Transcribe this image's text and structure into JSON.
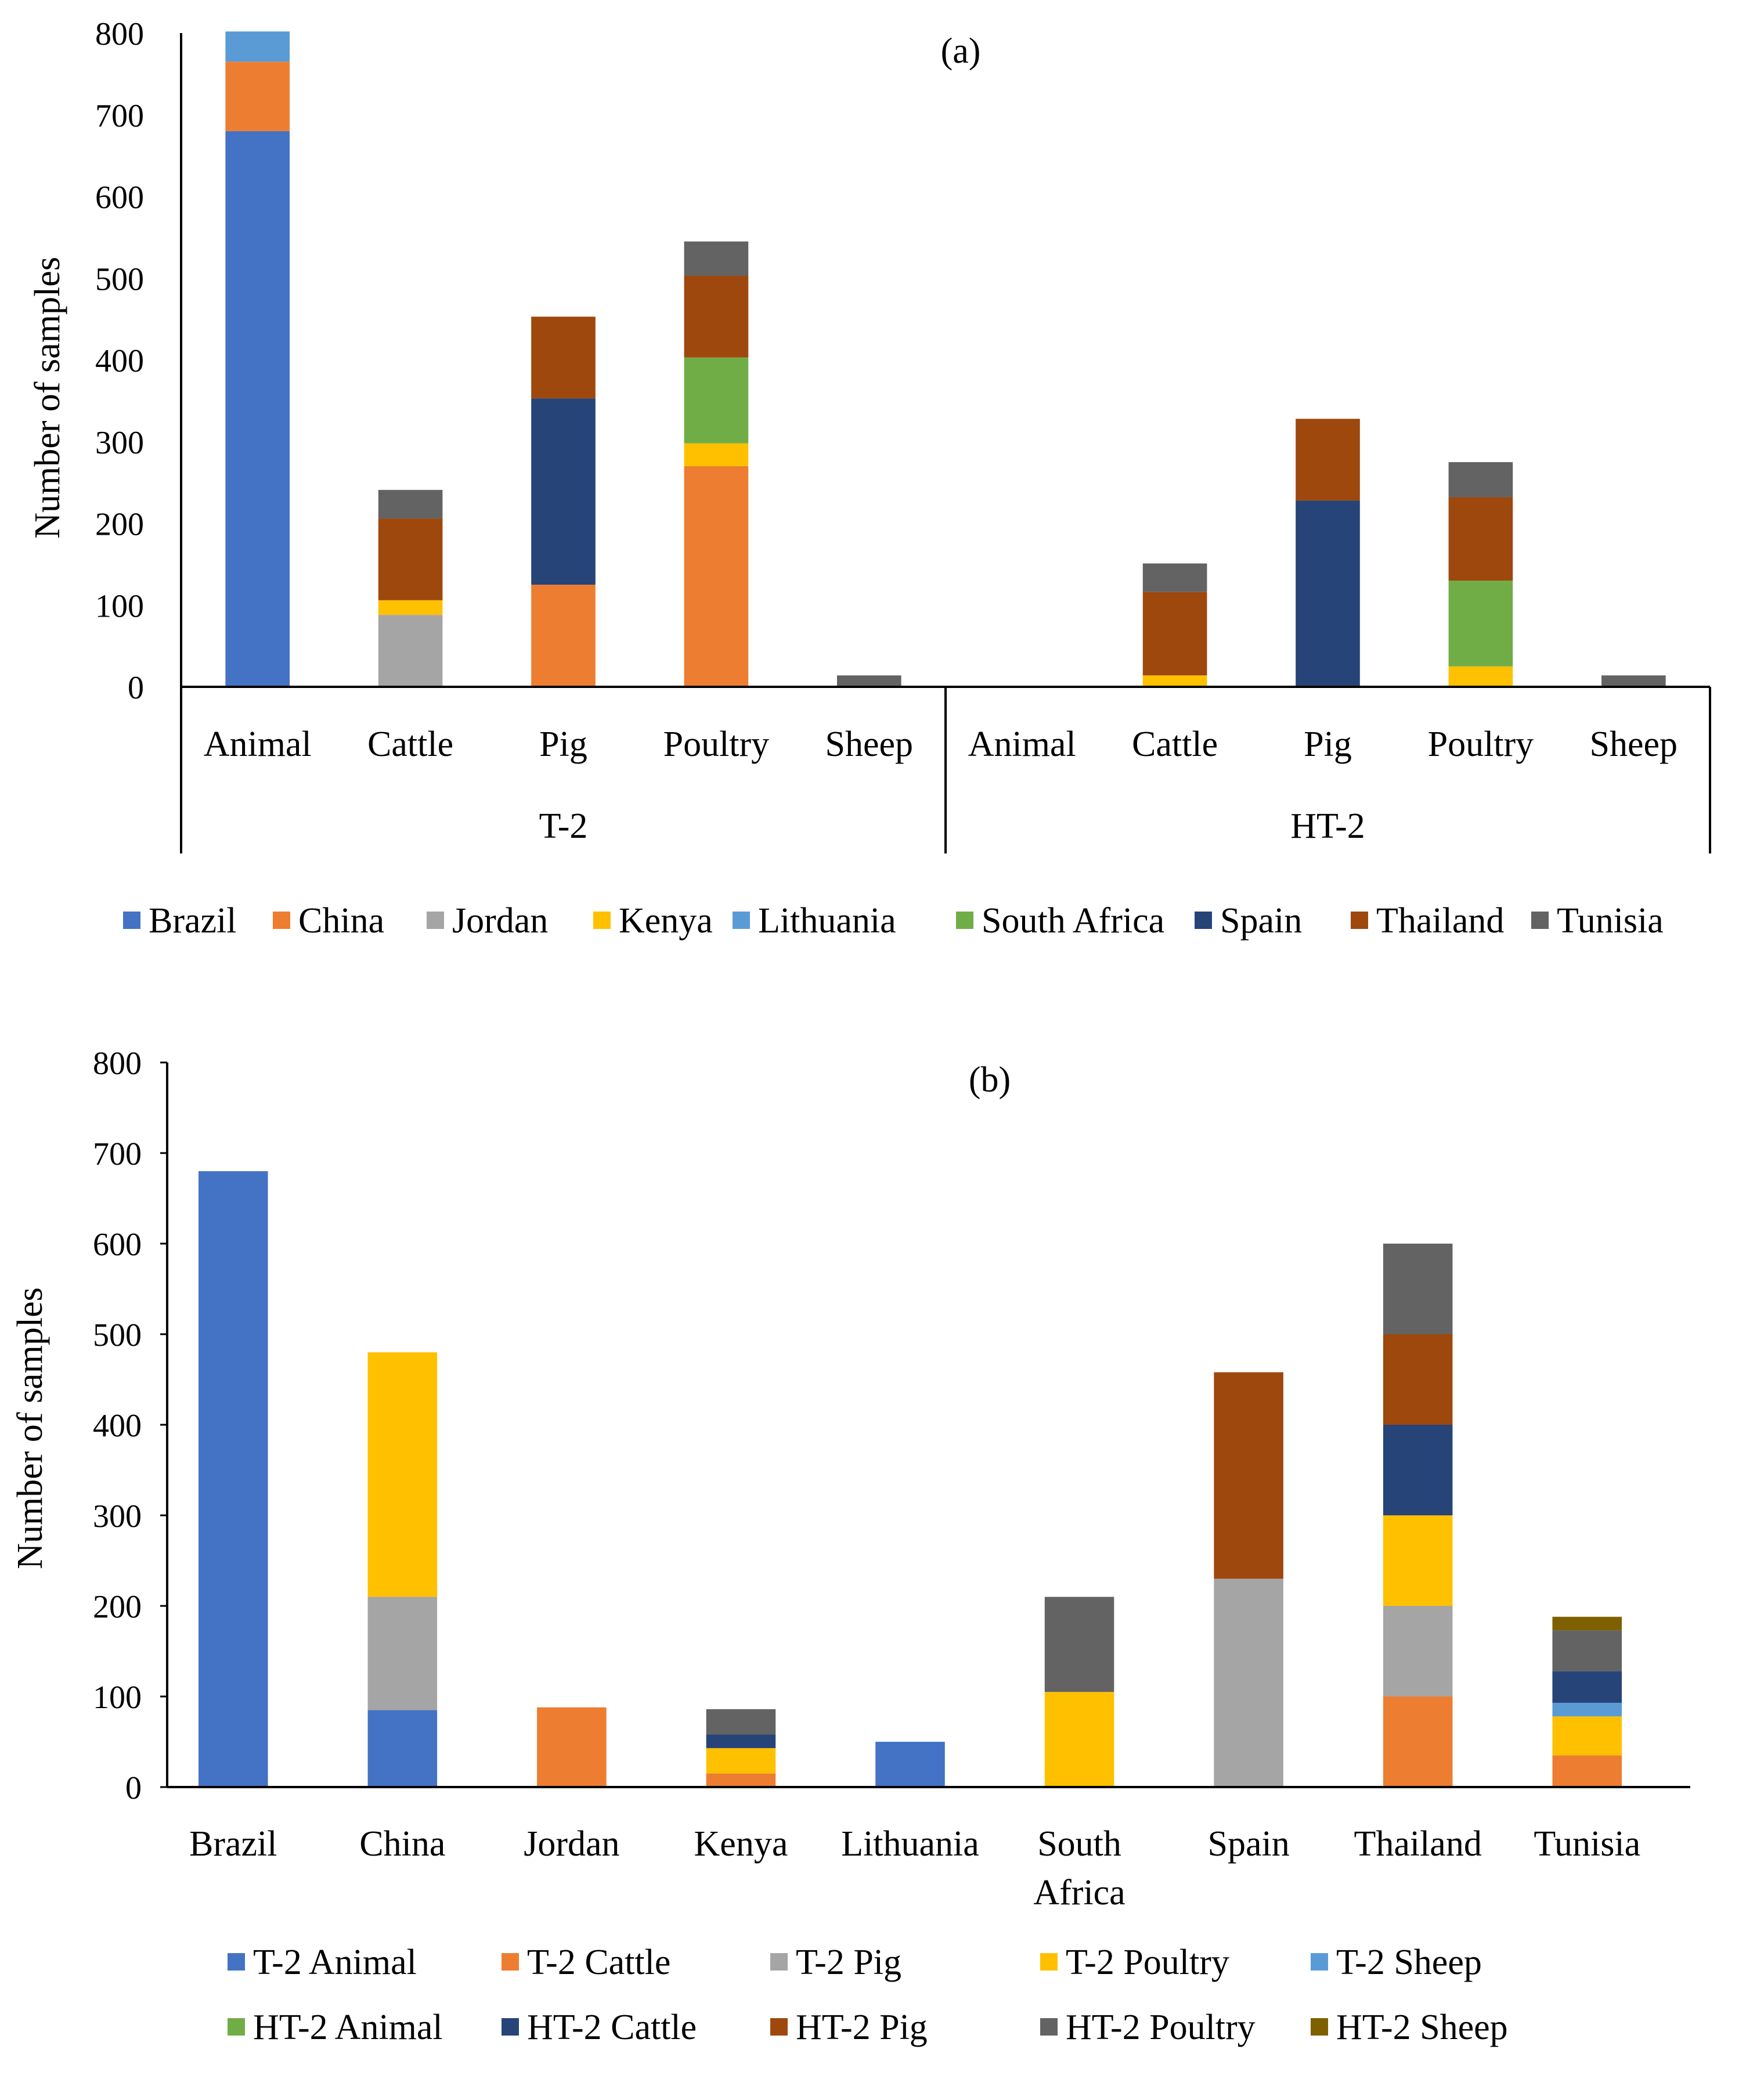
{
  "chart_data": [
    {
      "type": "bar",
      "stacked": true,
      "title": "(a)",
      "ylabel": "Number of samples",
      "xlabel": "",
      "ylim": [
        0,
        800
      ],
      "yticks": [
        0,
        100,
        200,
        300,
        400,
        500,
        600,
        700,
        800
      ],
      "ytick_labels": [
        "0",
        "100",
        "200",
        "300",
        "400",
        "500",
        "600",
        "700",
        "800"
      ],
      "groups": [
        {
          "label": "T-2",
          "categories": [
            "Animal",
            "Cattle",
            "Pig",
            "Poultry",
            "Sheep"
          ]
        },
        {
          "label": "HT-2",
          "categories": [
            "Animal",
            "Cattle",
            "Pig",
            "Poultry",
            "Sheep"
          ]
        }
      ],
      "series": [
        {
          "name": "Brazil",
          "color": "#4472C4",
          "values": [
            680,
            0,
            0,
            0,
            0,
            0,
            0,
            0,
            0,
            0
          ]
        },
        {
          "name": "China",
          "color": "#ED7D31",
          "values": [
            85,
            0,
            125,
            270,
            0,
            0,
            0,
            0,
            0,
            0
          ]
        },
        {
          "name": "Jordan",
          "color": "#A5A5A5",
          "values": [
            0,
            88,
            0,
            0,
            0,
            0,
            0,
            0,
            0,
            0
          ]
        },
        {
          "name": "Kenya",
          "color": "#FFC000",
          "values": [
            0,
            18,
            0,
            28,
            0,
            0,
            14,
            0,
            25,
            0
          ]
        },
        {
          "name": "Lithuania",
          "color": "#5B9BD5",
          "values": [
            37,
            0,
            0,
            0,
            0,
            0,
            0,
            0,
            0,
            0
          ]
        },
        {
          "name": "South Africa",
          "color": "#70AD47",
          "values": [
            0,
            0,
            0,
            105,
            0,
            0,
            0,
            0,
            105,
            0
          ]
        },
        {
          "name": "Spain",
          "color": "#264478",
          "values": [
            0,
            0,
            228,
            0,
            0,
            0,
            0,
            228,
            0,
            0
          ]
        },
        {
          "name": "Thailand",
          "color": "#9E480E",
          "values": [
            0,
            100,
            100,
            100,
            0,
            0,
            102,
            100,
            102,
            0
          ]
        },
        {
          "name": "Tunisia",
          "color": "#636363",
          "values": [
            0,
            35,
            0,
            42,
            14,
            0,
            35,
            0,
            43,
            14
          ]
        }
      ],
      "legend_position": "bottom"
    },
    {
      "type": "bar",
      "stacked": true,
      "title": "(b)",
      "ylabel": "Number of samples",
      "xlabel": "",
      "ylim": [
        0,
        800
      ],
      "yticks": [
        0,
        100,
        200,
        300,
        400,
        500,
        600,
        700,
        800
      ],
      "ytick_labels": [
        "0",
        "100",
        "200",
        "300",
        "400",
        "500",
        "600",
        "700",
        "800"
      ],
      "categories": [
        "Brazil",
        "China",
        "Jordan",
        "Kenya",
        "Lithuania",
        "South Africa",
        "Spain",
        "Thailand",
        "Tunisia"
      ],
      "category_lines": [
        [
          "Brazil"
        ],
        [
          "China"
        ],
        [
          "Jordan"
        ],
        [
          "Kenya"
        ],
        [
          "Lithuania"
        ],
        [
          "South",
          "Africa"
        ],
        [
          "Spain"
        ],
        [
          "Thailand"
        ],
        [
          "Tunisia"
        ]
      ],
      "series": [
        {
          "name": "T-2 Animal",
          "color": "#4472C4",
          "values": [
            680,
            85,
            0,
            0,
            50,
            0,
            0,
            0,
            0
          ]
        },
        {
          "name": "T-2 Cattle",
          "color": "#ED7D31",
          "values": [
            0,
            0,
            88,
            15,
            0,
            0,
            0,
            100,
            35
          ]
        },
        {
          "name": "T-2 Pig",
          "color": "#A5A5A5",
          "values": [
            0,
            125,
            0,
            0,
            0,
            0,
            230,
            100,
            0
          ]
        },
        {
          "name": "T-2 Poultry",
          "color": "#FFC000",
          "values": [
            0,
            270,
            0,
            28,
            0,
            105,
            0,
            100,
            43
          ]
        },
        {
          "name": "T-2 Sheep",
          "color": "#5B9BD5",
          "values": [
            0,
            0,
            0,
            0,
            0,
            0,
            0,
            0,
            15
          ]
        },
        {
          "name": "HT-2 Animal",
          "color": "#70AD47",
          "values": [
            0,
            0,
            0,
            0,
            0,
            0,
            0,
            0,
            0
          ]
        },
        {
          "name": "HT-2 Cattle",
          "color": "#264478",
          "values": [
            0,
            0,
            0,
            15,
            0,
            0,
            0,
            100,
            35
          ]
        },
        {
          "name": "HT-2 Pig",
          "color": "#9E480E",
          "values": [
            0,
            0,
            0,
            0,
            0,
            0,
            228,
            100,
            0
          ]
        },
        {
          "name": "HT-2 Poultry",
          "color": "#636363",
          "values": [
            0,
            0,
            0,
            28,
            0,
            105,
            0,
            100,
            45
          ]
        },
        {
          "name": "HT-2 Sheep",
          "color": "#7F6000",
          "values": [
            0,
            0,
            0,
            0,
            0,
            0,
            0,
            0,
            15
          ]
        }
      ],
      "legend_position": "bottom"
    }
  ]
}
